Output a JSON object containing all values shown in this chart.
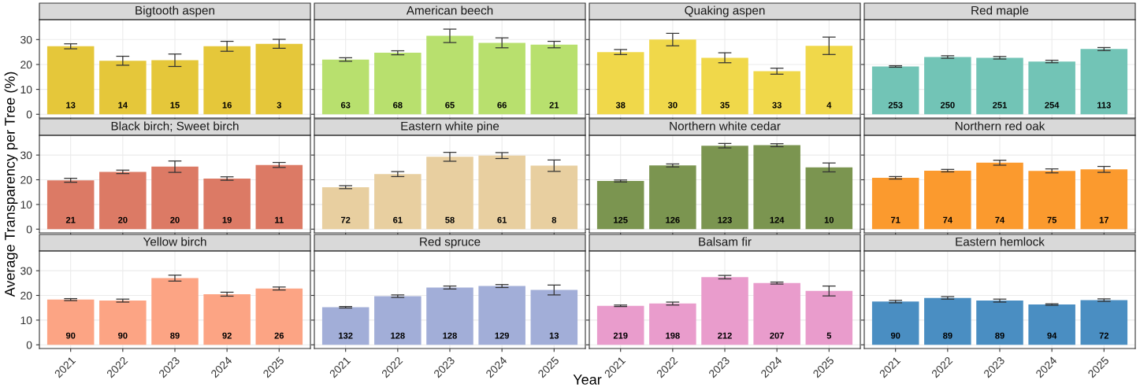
{
  "chart_data": [
    {
      "type": "bar",
      "title": "Bigtooth aspen",
      "categories": [
        "2021",
        "2022",
        "2023",
        "2024",
        "2025"
      ],
      "values": [
        27.3,
        21.5,
        21.7,
        27.3,
        28.3
      ],
      "errors": [
        1,
        1.8,
        2.5,
        2,
        1.8
      ],
      "annotations": [
        {
          "text": "13",
          "x": "2021",
          "y": 0
        },
        {
          "text": "14",
          "x": "2022",
          "y": 0
        },
        {
          "text": "15",
          "x": "2023",
          "y": 0
        },
        {
          "text": "16",
          "x": "2024",
          "y": 0
        },
        {
          "text": "3",
          "x": "2025",
          "y": 0
        }
      ],
      "color": "#e5c73a",
      "ylim": [
        -1.5,
        38
      ],
      "yticks": [
        0,
        10,
        20,
        30
      ],
      "grid": true,
      "tick_labels": "y"
    },
    {
      "type": "bar",
      "title": "American beech",
      "categories": [
        "2021",
        "2022",
        "2023",
        "2024",
        "2025"
      ],
      "values": [
        22,
        24.7,
        31.5,
        28.7,
        28
      ],
      "errors": [
        0.7,
        0.8,
        2.7,
        2,
        1.3
      ],
      "annotations": [
        {
          "text": "63",
          "x": "2021",
          "y": 0
        },
        {
          "text": "68",
          "x": "2022",
          "y": 0
        },
        {
          "text": "65",
          "x": "2023",
          "y": 0
        },
        {
          "text": "66",
          "x": "2024",
          "y": 0
        },
        {
          "text": "21",
          "x": "2025",
          "y": 0
        }
      ],
      "color": "#b8e06e",
      "ylim": [
        -1.5,
        38
      ],
      "yticks": [
        0,
        10,
        20,
        30
      ],
      "grid": true,
      "tick_labels": false
    },
    {
      "type": "bar",
      "title": "Quaking aspen",
      "categories": [
        "2021",
        "2022",
        "2023",
        "2024",
        "2025"
      ],
      "values": [
        25,
        30,
        22.7,
        17.3,
        27.5
      ],
      "errors": [
        1,
        2.5,
        2,
        1.2,
        3.5
      ],
      "annotations": [
        {
          "text": "38",
          "x": "2021",
          "y": 0
        },
        {
          "text": "30",
          "x": "2022",
          "y": 0
        },
        {
          "text": "35",
          "x": "2023",
          "y": 0
        },
        {
          "text": "33",
          "x": "2024",
          "y": 0
        },
        {
          "text": "4",
          "x": "2025",
          "y": 0
        }
      ],
      "color": "#f0d84a",
      "ylim": [
        -1.5,
        38
      ],
      "yticks": [
        0,
        10,
        20,
        30
      ],
      "grid": true,
      "tick_labels": false
    },
    {
      "type": "bar",
      "title": "Red maple",
      "categories": [
        "2021",
        "2022",
        "2023",
        "2024",
        "2025"
      ],
      "values": [
        19.2,
        23,
        22.7,
        21.2,
        26.2
      ],
      "errors": [
        0.3,
        0.5,
        0.5,
        0.5,
        0.6
      ],
      "annotations": [
        {
          "text": "253",
          "x": "2021",
          "y": 0
        },
        {
          "text": "250",
          "x": "2022",
          "y": 0
        },
        {
          "text": "251",
          "x": "2023",
          "y": 0
        },
        {
          "text": "254",
          "x": "2024",
          "y": 0
        },
        {
          "text": "113",
          "x": "2025",
          "y": 0
        }
      ],
      "color": "#72c4b6",
      "ylim": [
        -1.5,
        38
      ],
      "yticks": [
        0,
        10,
        20,
        30
      ],
      "grid": true,
      "tick_labels": false
    },
    {
      "type": "bar",
      "title": "Black birch; Sweet birch",
      "ylabel": "Average Transparency per Tree (%)",
      "categories": [
        "2021",
        "2022",
        "2023",
        "2024",
        "2025"
      ],
      "values": [
        19.8,
        23.2,
        25.3,
        20.5,
        26
      ],
      "errors": [
        0.8,
        0.7,
        2.3,
        0.7,
        1
      ],
      "annotations": [
        {
          "text": "21",
          "x": "2021",
          "y": 0
        },
        {
          "text": "20",
          "x": "2022",
          "y": 0
        },
        {
          "text": "20",
          "x": "2023",
          "y": 0
        },
        {
          "text": "19",
          "x": "2024",
          "y": 0
        },
        {
          "text": "11",
          "x": "2025",
          "y": 0
        }
      ],
      "color": "#dc7a65",
      "ylim": [
        -1.5,
        38
      ],
      "yticks": [
        0,
        10,
        20,
        30
      ],
      "grid": true,
      "tick_labels": "y"
    },
    {
      "type": "bar",
      "title": "Eastern white pine",
      "categories": [
        "2021",
        "2022",
        "2023",
        "2024",
        "2025"
      ],
      "values": [
        17,
        22.3,
        29.3,
        29.8,
        25.7
      ],
      "errors": [
        0.6,
        1,
        1.8,
        1.2,
        2.3
      ],
      "annotations": [
        {
          "text": "72",
          "x": "2021",
          "y": 0
        },
        {
          "text": "61",
          "x": "2022",
          "y": 0
        },
        {
          "text": "58",
          "x": "2023",
          "y": 0
        },
        {
          "text": "61",
          "x": "2024",
          "y": 0
        },
        {
          "text": "8",
          "x": "2025",
          "y": 0
        }
      ],
      "color": "#e8cfa0",
      "ylim": [
        -1.5,
        38
      ],
      "yticks": [
        0,
        10,
        20,
        30
      ],
      "grid": true,
      "tick_labels": false
    },
    {
      "type": "bar",
      "title": "Northern white cedar",
      "categories": [
        "2021",
        "2022",
        "2023",
        "2024",
        "2025"
      ],
      "values": [
        19.5,
        25.8,
        33.8,
        34,
        25
      ],
      "errors": [
        0.4,
        0.6,
        0.9,
        0.6,
        1.8
      ],
      "annotations": [
        {
          "text": "125",
          "x": "2021",
          "y": 0
        },
        {
          "text": "126",
          "x": "2022",
          "y": 0
        },
        {
          "text": "123",
          "x": "2023",
          "y": 0
        },
        {
          "text": "124",
          "x": "2024",
          "y": 0
        },
        {
          "text": "10",
          "x": "2025",
          "y": 0
        }
      ],
      "color": "#7b9550",
      "ylim": [
        -1.5,
        38
      ],
      "yticks": [
        0,
        10,
        20,
        30
      ],
      "grid": true,
      "tick_labels": false
    },
    {
      "type": "bar",
      "title": "Northern red oak",
      "categories": [
        "2021",
        "2022",
        "2023",
        "2024",
        "2025"
      ],
      "values": [
        20.8,
        23.7,
        26.9,
        23.6,
        24.2
      ],
      "errors": [
        0.5,
        0.5,
        1,
        0.8,
        1.2
      ],
      "annotations": [
        {
          "text": "71",
          "x": "2021",
          "y": 0
        },
        {
          "text": "74",
          "x": "2022",
          "y": 0
        },
        {
          "text": "74",
          "x": "2023",
          "y": 0
        },
        {
          "text": "75",
          "x": "2024",
          "y": 0
        },
        {
          "text": "17",
          "x": "2025",
          "y": 0
        }
      ],
      "color": "#fb9a2e",
      "ylim": [
        -1.5,
        38
      ],
      "yticks": [
        0,
        10,
        20,
        30
      ],
      "grid": true,
      "tick_labels": false
    },
    {
      "type": "bar",
      "title": "Yellow birch",
      "categories": [
        "2021",
        "2022",
        "2023",
        "2024",
        "2025"
      ],
      "values": [
        18.3,
        17.9,
        27,
        20.5,
        22.8
      ],
      "errors": [
        0.4,
        0.6,
        1.2,
        0.8,
        0.6
      ],
      "annotations": [
        {
          "text": "90",
          "x": "2021",
          "y": 0
        },
        {
          "text": "90",
          "x": "2022",
          "y": 0
        },
        {
          "text": "89",
          "x": "2023",
          "y": 0
        },
        {
          "text": "92",
          "x": "2024",
          "y": 0
        },
        {
          "text": "26",
          "x": "2025",
          "y": 0
        }
      ],
      "color": "#fca484",
      "ylim": [
        -1.5,
        38
      ],
      "yticks": [
        0,
        10,
        20,
        30
      ],
      "grid": true
    },
    {
      "type": "bar",
      "title": "Red spruce",
      "xlabel": "Year",
      "categories": [
        "2021",
        "2022",
        "2023",
        "2024",
        "2025"
      ],
      "values": [
        15.2,
        19.7,
        23.2,
        23.8,
        22.2
      ],
      "errors": [
        0.3,
        0.5,
        0.6,
        0.6,
        2
      ],
      "annotations": [
        {
          "text": "132",
          "x": "2021",
          "y": 0
        },
        {
          "text": "128",
          "x": "2022",
          "y": 0
        },
        {
          "text": "128",
          "x": "2023",
          "y": 0
        },
        {
          "text": "129",
          "x": "2024",
          "y": 0
        },
        {
          "text": "13",
          "x": "2025",
          "y": 0
        }
      ],
      "color": "#a2aed8",
      "ylim": [
        -1.5,
        38
      ],
      "yticks": [
        0,
        10,
        20,
        30
      ],
      "grid": true,
      "tick_labels": "x"
    },
    {
      "type": "bar",
      "title": "Balsam fir",
      "categories": [
        "2021",
        "2022",
        "2023",
        "2024",
        "2025"
      ],
      "values": [
        15.8,
        16.7,
        27.4,
        25,
        21.8
      ],
      "errors": [
        0.3,
        0.6,
        0.7,
        0.4,
        2
      ],
      "annotations": [
        {
          "text": "219",
          "x": "2021",
          "y": 0
        },
        {
          "text": "198",
          "x": "2022",
          "y": 0
        },
        {
          "text": "212",
          "x": "2023",
          "y": 0
        },
        {
          "text": "207",
          "x": "2024",
          "y": 0
        },
        {
          "text": "5",
          "x": "2025",
          "y": 0
        }
      ],
      "color": "#e99ccc",
      "ylim": [
        -1.5,
        38
      ],
      "yticks": [
        0,
        10,
        20,
        30
      ],
      "grid": true,
      "tick_labels": "x"
    },
    {
      "type": "bar",
      "title": "Eastern hemlock",
      "categories": [
        "2021",
        "2022",
        "2023",
        "2024",
        "2025"
      ],
      "values": [
        17.5,
        19,
        17.9,
        16.3,
        18.1
      ],
      "errors": [
        0.5,
        0.5,
        0.6,
        0.3,
        0.5
      ],
      "annotations": [
        {
          "text": "90",
          "x": "2021",
          "y": 0
        },
        {
          "text": "89",
          "x": "2022",
          "y": 0
        },
        {
          "text": "89",
          "x": "2023",
          "y": 0
        },
        {
          "text": "94",
          "x": "2024",
          "y": 0
        },
        {
          "text": "72",
          "x": "2025",
          "y": 0
        }
      ],
      "color": "#4a8ec2",
      "ylim": [
        -1.5,
        38
      ],
      "yticks": [
        0,
        10,
        20,
        30
      ],
      "grid": true,
      "tick_labels": "x"
    }
  ]
}
